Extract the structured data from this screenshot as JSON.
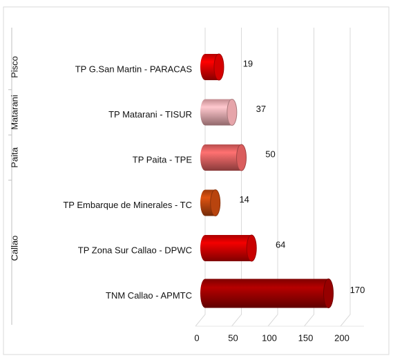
{
  "chart_data": {
    "type": "bar",
    "orientation": "horizontal",
    "groups": [
      {
        "name": "Pisco",
        "categories": [
          "TP G.San Martin - PARACAS"
        ],
        "values": [
          19
        ],
        "colors": [
          "#e00000"
        ]
      },
      {
        "name": "Matarani",
        "categories": [
          "TP Matarani - TISUR"
        ],
        "values": [
          37
        ],
        "colors": [
          "#f2aeb3"
        ]
      },
      {
        "name": "Paita",
        "categories": [
          "TP Paita - TPE"
        ],
        "values": [
          50
        ],
        "colors": [
          "#e56262"
        ]
      },
      {
        "name": "Callao",
        "categories": [
          "TP Embarque de Minerales - TC",
          "TP Zona Sur Callao - DPWC",
          "TNM Callao - APMTC"
        ],
        "values": [
          14,
          64,
          170
        ],
        "colors": [
          "#c2480f",
          "#d40000",
          "#9e0000"
        ]
      }
    ],
    "xlim": [
      0,
      200
    ],
    "xticks": [
      0,
      50,
      100,
      150,
      200
    ],
    "grid": true
  }
}
